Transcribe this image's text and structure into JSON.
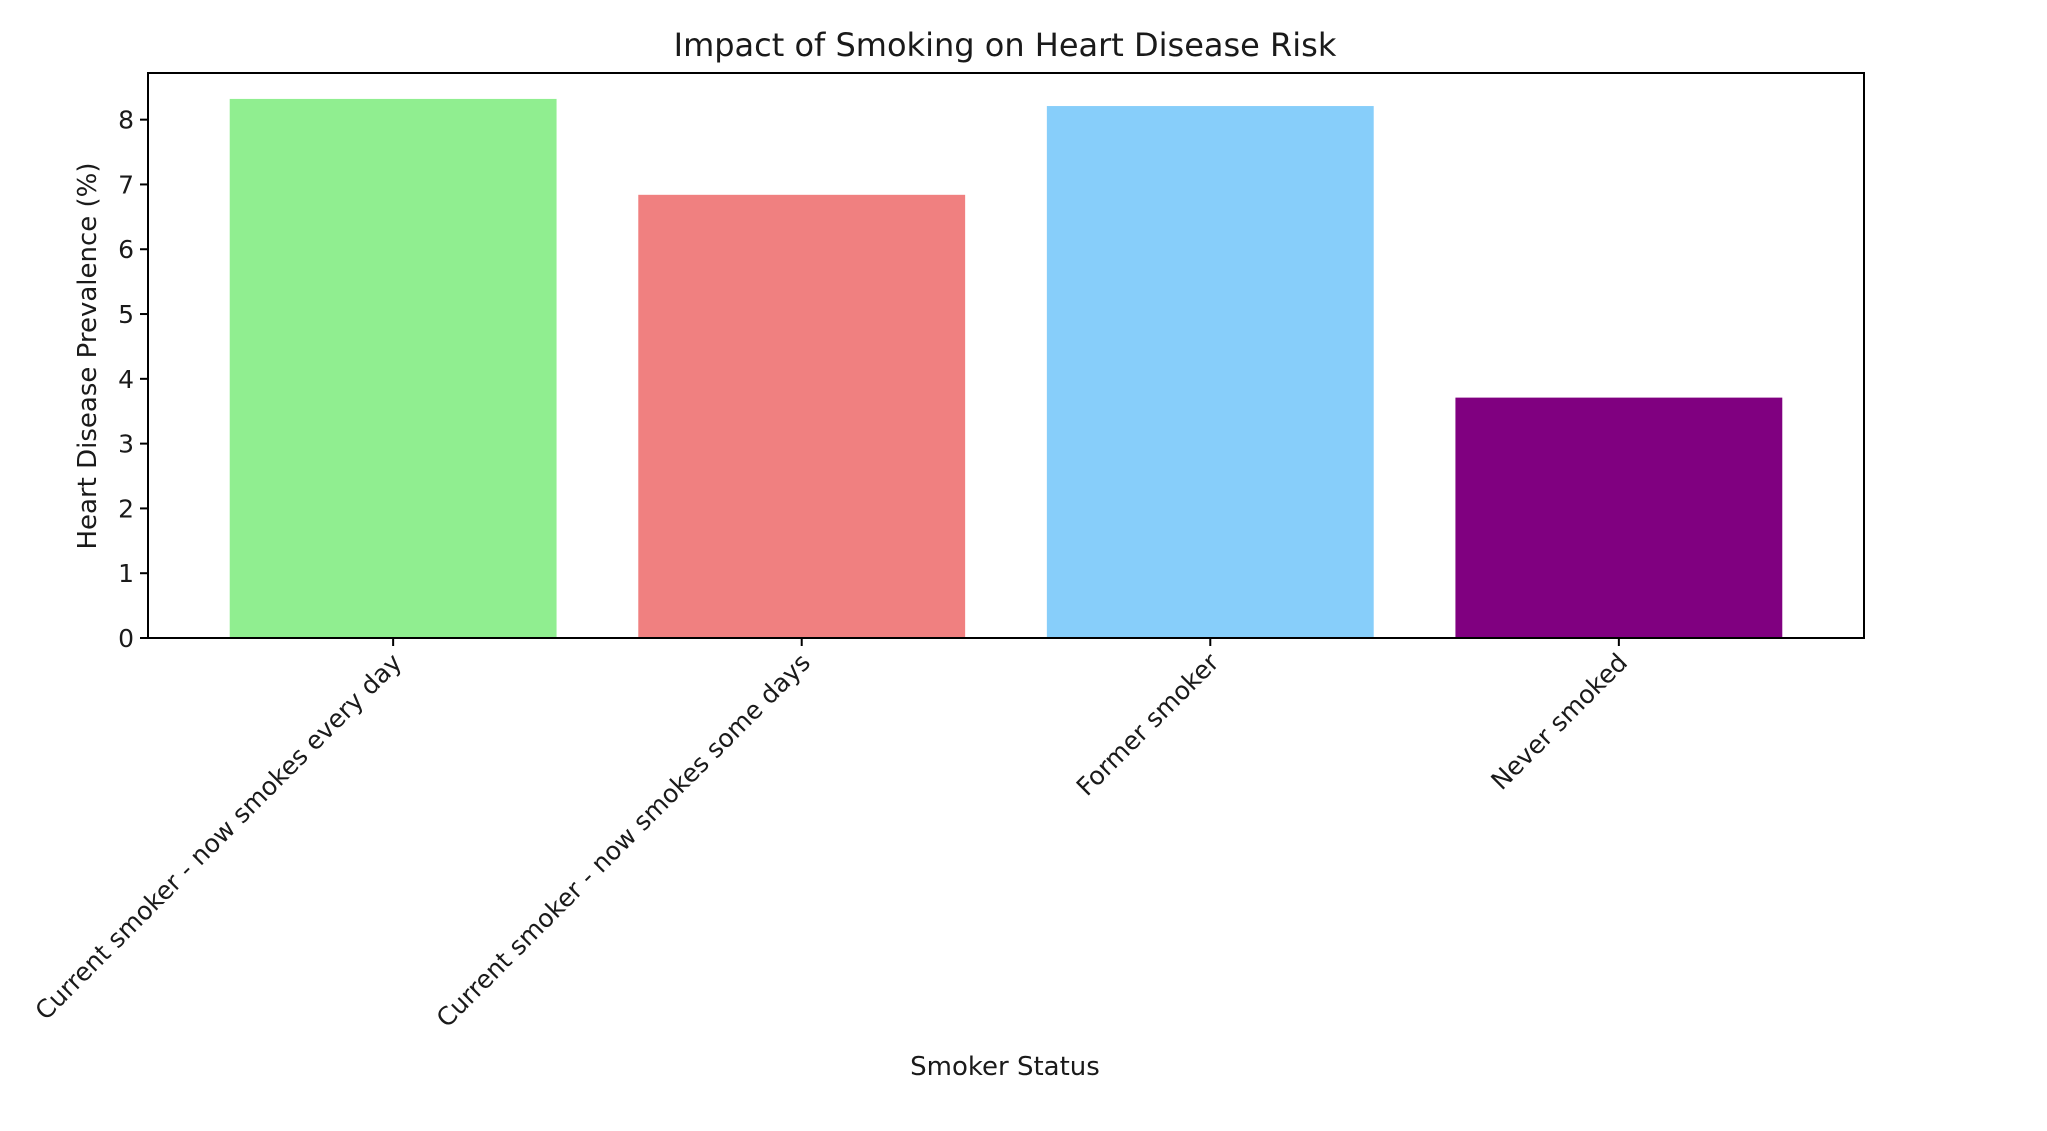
{
  "chart_data": {
    "type": "bar",
    "title": "Impact of Smoking on Heart Disease Risk",
    "xlabel": "Smoker Status",
    "ylabel": "Heart Disease Prevalence (%)",
    "categories": [
      "Current smoker - now smokes every day",
      "Current smoker - now smokes some days",
      "Former smoker",
      "Never smoked"
    ],
    "values": [
      8.32,
      6.84,
      8.21,
      3.71
    ],
    "colors": [
      "#90ee90",
      "#f08080",
      "#87cefa",
      "#800080"
    ],
    "ylim": [
      0,
      8.72
    ],
    "yticks": [
      0,
      1,
      2,
      3,
      4,
      5,
      6,
      7,
      8
    ],
    "grid": false,
    "legend": "none"
  }
}
